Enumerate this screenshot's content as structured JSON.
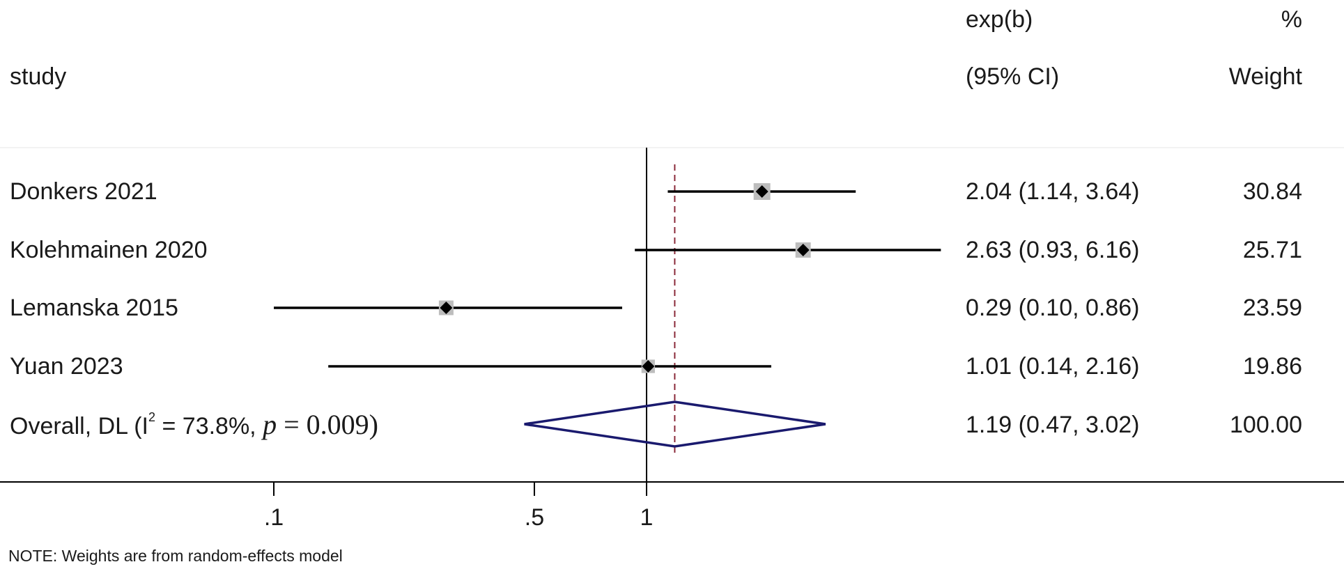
{
  "header": {
    "study_label": "study",
    "effect_label_1": "exp(b)",
    "effect_label_2": "(95% CI)",
    "weight_label_1": "%",
    "weight_label_2": "Weight"
  },
  "overall": {
    "label_prefix": "Overall, DL (I",
    "i2_sup": "2",
    "label_mid": " = 73.8%, ",
    "p_symbol": "p",
    "p_rest": " = 0.009)",
    "ci_text": "1.19 (0.47, 3.02)",
    "weight": "100.00"
  },
  "note": "NOTE: Weights are from random-effects model",
  "colors": {
    "study_line": "#000000",
    "weight_box": "#bdbdbd",
    "point": "#000000",
    "diamond": "#1a1a6e",
    "reference_line": "#8b2a3a",
    "axis": "#000000"
  },
  "chart_data": {
    "type": "forest",
    "scale": "log",
    "xaxis_ticks": [
      0.1,
      0.5,
      1
    ],
    "xaxis_tick_labels": [
      ".1",
      ".5",
      "1"
    ],
    "xlim": [
      0.07,
      20
    ],
    "null_line": 1,
    "overall_line": 1.19,
    "studies": [
      {
        "name": "Donkers 2021",
        "estimate": 2.04,
        "lower": 1.14,
        "upper": 3.64,
        "ci_text": "2.04 (1.14, 3.64)",
        "weight": "30.84"
      },
      {
        "name": "Kolehmainen 2020",
        "estimate": 2.63,
        "lower": 0.93,
        "upper": 6.16,
        "ci_text": "2.63 (0.93, 6.16)",
        "weight": "25.71"
      },
      {
        "name": "Lemanska 2015",
        "estimate": 0.29,
        "lower": 0.1,
        "upper": 0.86,
        "ci_text": "0.29 (0.10, 0.86)",
        "weight": "23.59"
      },
      {
        "name": "Yuan 2023",
        "estimate": 1.01,
        "lower": 0.14,
        "upper": 2.16,
        "ci_text": "1.01 (0.14, 2.16)",
        "weight": "19.86"
      }
    ],
    "overall": {
      "estimate": 1.19,
      "lower": 0.47,
      "upper": 3.02
    }
  }
}
